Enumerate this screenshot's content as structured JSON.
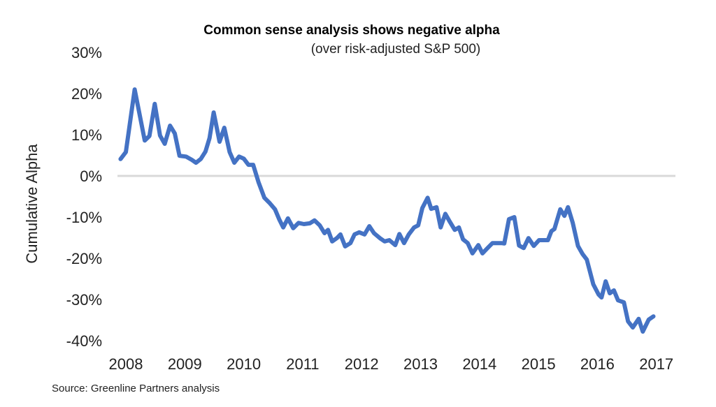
{
  "chart_data": {
    "type": "line",
    "title": "Common sense analysis shows negative alpha",
    "subtitle": "(over risk-adjusted S&P 500)",
    "xlabel": "",
    "ylabel": "Cumulative Alpha",
    "source": "Source: Greenline Partners analysis",
    "ylim": [
      -40,
      30
    ],
    "yticks": [
      30,
      20,
      10,
      0,
      -10,
      -20,
      -30,
      -40
    ],
    "ytick_labels": [
      "30%",
      "20%",
      "10%",
      "0%",
      "-10%",
      "-20%",
      "-30%",
      "-40%"
    ],
    "xlim": [
      2007.85,
      2017.35
    ],
    "xticks": [
      2008,
      2009,
      2010,
      2011,
      2012,
      2013,
      2014,
      2015,
      2016,
      2017
    ],
    "xtick_labels": [
      "2008",
      "2009",
      "2010",
      "2011",
      "2012",
      "2013",
      "2014",
      "2015",
      "2016",
      "2017"
    ],
    "grid": "zero-line only",
    "legend": "none",
    "line_color": "#4472C4",
    "zero_line_color": "#D9D9D9",
    "series": [
      {
        "name": "Cumulative Alpha",
        "x": [
          2007.91,
          2008.0,
          2008.15,
          2008.32,
          2008.4,
          2008.49,
          2008.58,
          2008.66,
          2008.75,
          2008.83,
          2008.91,
          2009.02,
          2009.12,
          2009.19,
          2009.27,
          2009.35,
          2009.42,
          2009.49,
          2009.59,
          2009.67,
          2009.76,
          2009.84,
          2009.92,
          2010.0,
          2010.08,
          2010.16,
          2010.25,
          2010.35,
          2010.44,
          2010.53,
          2010.6,
          2010.67,
          2010.75,
          2010.84,
          2010.93,
          2011.02,
          2011.12,
          2011.2,
          2011.29,
          2011.37,
          2011.43,
          2011.5,
          2011.58,
          2011.64,
          2011.72,
          2011.81,
          2011.88,
          2011.96,
          2012.05,
          2012.13,
          2012.21,
          2012.31,
          2012.39,
          2012.47,
          2012.57,
          2012.64,
          2012.72,
          2012.8,
          2012.89,
          2012.96,
          2013.03,
          2013.12,
          2013.18,
          2013.27,
          2013.34,
          2013.42,
          2013.5,
          2013.58,
          2013.65,
          2013.72,
          2013.8,
          2013.88,
          2013.98,
          2014.05,
          2014.13,
          2014.22,
          2014.37,
          2014.42,
          2014.5,
          2014.59,
          2014.67,
          2014.75,
          2014.83,
          2014.92,
          2015.01,
          2015.16,
          2015.22,
          2015.27,
          2015.37,
          2015.44,
          2015.5,
          2015.58,
          2015.67,
          2015.75,
          2015.82,
          2015.93,
          2016.02,
          2016.07,
          2016.14,
          2016.21,
          2016.28,
          2016.35,
          2016.45,
          2016.52,
          2016.6,
          2016.7,
          2016.77,
          2016.87,
          2016.95
        ],
        "values": [
          4.1,
          5.8,
          21.0,
          8.6,
          9.7,
          17.5,
          9.8,
          7.8,
          12.2,
          10.3,
          4.9,
          4.7,
          3.9,
          3.2,
          4.1,
          5.9,
          9.2,
          15.4,
          8.3,
          11.7,
          5.8,
          3.2,
          4.7,
          4.2,
          2.7,
          2.7,
          -1.5,
          -5.3,
          -6.6,
          -8.1,
          -10.5,
          -12.5,
          -10.3,
          -12.7,
          -11.4,
          -11.7,
          -11.5,
          -10.8,
          -12.0,
          -13.9,
          -13.1,
          -15.9,
          -15.1,
          -14.2,
          -17.1,
          -16.3,
          -14.2,
          -13.7,
          -14.2,
          -12.2,
          -13.9,
          -15.1,
          -15.9,
          -15.6,
          -16.8,
          -14.1,
          -16.3,
          -14.2,
          -12.5,
          -12.0,
          -7.8,
          -5.3,
          -8.0,
          -7.6,
          -12.5,
          -9.2,
          -11.2,
          -13.1,
          -12.5,
          -15.4,
          -16.3,
          -18.8,
          -16.8,
          -18.8,
          -17.6,
          -16.3,
          -16.3,
          -16.4,
          -10.5,
          -10.0,
          -16.9,
          -17.5,
          -15.1,
          -17.0,
          -15.6,
          -15.6,
          -13.4,
          -12.9,
          -8.1,
          -9.7,
          -7.6,
          -11.3,
          -17.0,
          -19.0,
          -20.3,
          -26.3,
          -28.8,
          -29.5,
          -25.6,
          -28.5,
          -27.8,
          -30.2,
          -30.7,
          -35.3,
          -36.8,
          -34.7,
          -37.8,
          -34.9,
          -34.1
        ]
      }
    ]
  }
}
